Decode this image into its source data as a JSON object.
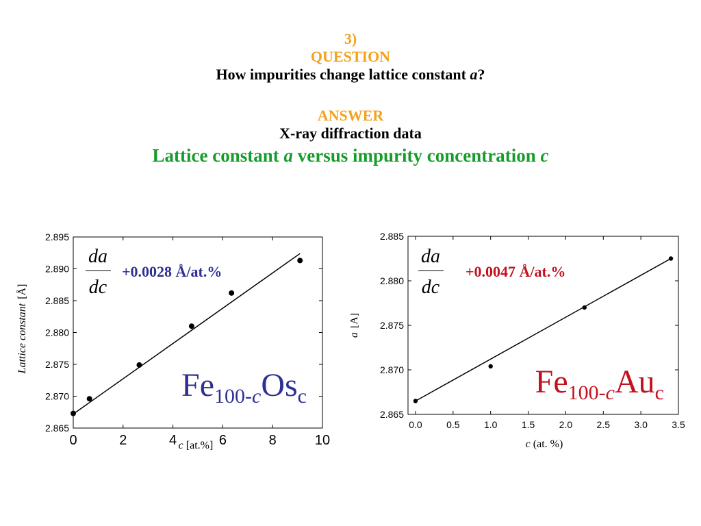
{
  "slide": {
    "number": "3)",
    "question_heading": "QUESTION",
    "question_text": "How impurities change lattice constant",
    "question_var": "a",
    "question_mark": "?",
    "answer_heading": "ANSWER",
    "answer_text": "X-ray diffraction data",
    "subtitle_part1": "Lattice constant",
    "subtitle_var1": "a",
    "subtitle_part2": "versus impurity concentration",
    "subtitle_var2": "c"
  },
  "colors": {
    "orange": "#f5a11c",
    "green": "#169c2a",
    "blue": "#2e3192",
    "red": "#c1121f"
  },
  "chart_data": [
    {
      "type": "scatter",
      "xlabel_var": "c",
      "xlabel_unit": "[at.%]",
      "ylabel_var": "Lattice constant",
      "ylabel_unit": "[Å]",
      "xlim": [
        0,
        10
      ],
      "ylim": [
        2.865,
        2.895
      ],
      "xticks": [
        "0",
        "2",
        "4",
        "6",
        "8",
        "10"
      ],
      "yticks": [
        "2.865",
        "2.870",
        "2.875",
        "2.880",
        "2.885",
        "2.890",
        "2.895"
      ],
      "points": [
        {
          "x": 0.0,
          "y": 2.8673
        },
        {
          "x": 0.65,
          "y": 2.8696
        },
        {
          "x": 2.65,
          "y": 2.8749
        },
        {
          "x": 4.75,
          "y": 2.881
        },
        {
          "x": 6.35,
          "y": 2.8862
        },
        {
          "x": 9.1,
          "y": 2.8913
        }
      ],
      "fit_line": {
        "x": [
          0,
          9.1
        ],
        "y": [
          2.8672,
          2.8924
        ]
      },
      "slope_label": "+0.0028 Å/at.%",
      "derivative_num": "da",
      "derivative_den": "dc",
      "alloy_base": "Fe",
      "alloy_sub1": "100-",
      "alloy_sub_var": "c",
      "alloy_element": "Os",
      "alloy_sub2": "c",
      "alloy_color": "#2e3192"
    },
    {
      "type": "scatter",
      "xlabel_var": "c",
      "xlabel_unit": "(at. %)",
      "ylabel_var": "a",
      "ylabel_unit": "[Å]",
      "xlim": [
        -0.1,
        3.5
      ],
      "ylim": [
        2.865,
        2.885
      ],
      "xticks": [
        "0.0",
        "0.5",
        "1.0",
        "1.5",
        "2.0",
        "2.5",
        "3.0",
        "3.5"
      ],
      "yticks": [
        "2.865",
        "2.870",
        "2.875",
        "2.880",
        "2.885"
      ],
      "points": [
        {
          "x": 0.0,
          "y": 2.8665
        },
        {
          "x": 1.0,
          "y": 2.8704
        },
        {
          "x": 2.25,
          "y": 2.877
        },
        {
          "x": 3.4,
          "y": 2.8825
        }
      ],
      "fit_line": {
        "x": [
          0,
          3.4
        ],
        "y": [
          2.8665,
          2.8825
        ]
      },
      "slope_label": "+0.0047 Å/at.%",
      "derivative_num": "da",
      "derivative_den": "dc",
      "alloy_base": "Fe",
      "alloy_sub1": "100-",
      "alloy_sub_var": "c",
      "alloy_element": "Au",
      "alloy_sub2": "c",
      "alloy_color": "#c1121f"
    }
  ]
}
